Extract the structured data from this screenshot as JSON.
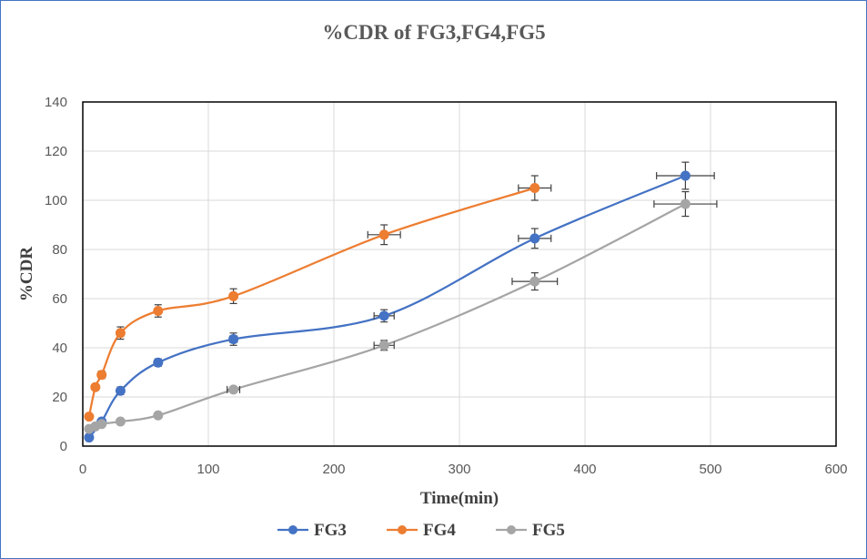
{
  "chart_data": {
    "type": "scatter",
    "title": "%CDR of FG3,FG4,FG5",
    "xlabel": "Time(min)",
    "ylabel": "%CDR",
    "xlim": [
      0,
      600
    ],
    "ylim": [
      0,
      140
    ],
    "x_ticks": [
      0,
      100,
      200,
      300,
      400,
      500,
      600
    ],
    "y_ticks": [
      0,
      20,
      40,
      60,
      80,
      100,
      120,
      140
    ],
    "grid": true,
    "legend_position": "bottom",
    "smooth_lines": true,
    "series": [
      {
        "name": "FG3",
        "color": "#4472c4",
        "x": [
          5,
          15,
          30,
          60,
          120,
          240,
          360,
          480
        ],
        "y": [
          3.5,
          10,
          22.5,
          34,
          43.5,
          53,
          84.5,
          110
        ],
        "x_error": [
          0,
          0,
          0,
          0,
          3,
          8,
          13,
          23
        ],
        "y_error": [
          0,
          0,
          1.5,
          1.5,
          2.5,
          2.5,
          4,
          5.5
        ]
      },
      {
        "name": "FG4",
        "color": "#ed7d31",
        "x": [
          5,
          10,
          15,
          30,
          60,
          120,
          240,
          360
        ],
        "y": [
          12,
          24,
          29,
          46,
          55,
          61,
          86,
          105
        ],
        "x_error": [
          0,
          0,
          0,
          0,
          0,
          0,
          13,
          13
        ],
        "y_error": [
          0,
          0,
          1.5,
          2.5,
          2.5,
          3,
          4,
          5
        ]
      },
      {
        "name": "FG5",
        "color": "#a5a5a5",
        "x": [
          5,
          10,
          15,
          30,
          60,
          120,
          240,
          360,
          480
        ],
        "y": [
          7,
          8,
          9,
          10,
          12.5,
          23,
          41,
          67,
          98.5
        ],
        "x_error": [
          0,
          0,
          0,
          0,
          0,
          5,
          8,
          18,
          25
        ],
        "y_error": [
          0,
          0,
          0,
          0,
          1,
          1,
          2,
          3.5,
          5
        ]
      }
    ]
  }
}
